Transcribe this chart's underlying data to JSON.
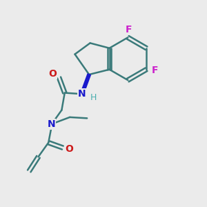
{
  "bg_color": "#ebebeb",
  "bond_color": "#3a7a7a",
  "bond_width": 1.8,
  "N_color": "#1a1acc",
  "O_color": "#cc1a1a",
  "F_color": "#cc22cc",
  "H_color": "#4aaeae",
  "figsize": [
    3.0,
    3.0
  ],
  "dpi": 100,
  "xlim": [
    0,
    10
  ],
  "ylim": [
    0,
    10
  ]
}
